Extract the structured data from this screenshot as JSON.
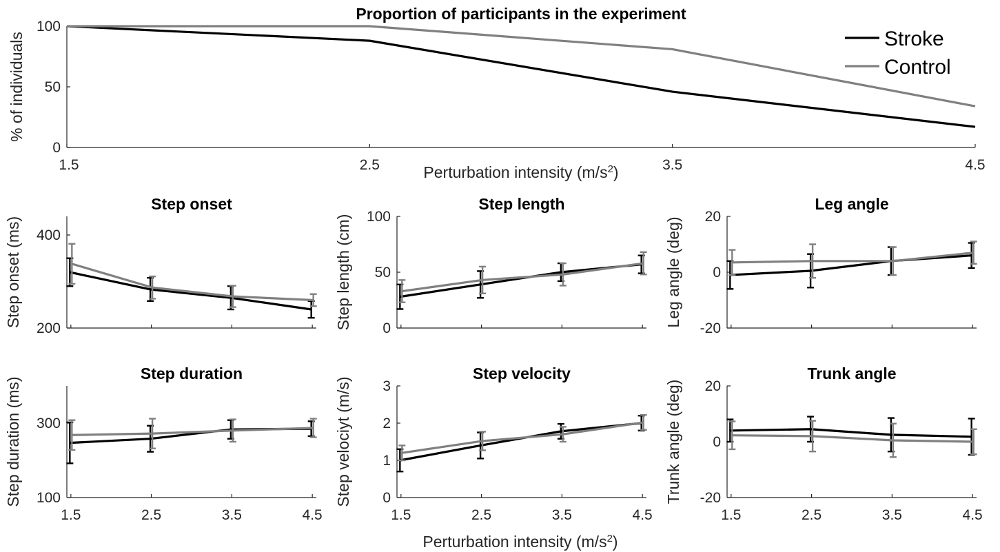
{
  "colors": {
    "stroke": "#000000",
    "control": "#808080",
    "axis": "#262626"
  },
  "legend": {
    "placement": "top-right",
    "entries": [
      "Stroke",
      "Control"
    ]
  },
  "xlabel_bottom": {
    "prefix": "Perturbation intensity (m/s",
    "sup": "2",
    "suffix": ")"
  },
  "chart_data": [
    {
      "id": "participants",
      "type": "line",
      "title": "Proportion of participants in the experiment",
      "xlabel": {
        "prefix": "Perturbation intensity (m/s",
        "sup": "2",
        "suffix": ")"
      },
      "ylabel": "% of individuals",
      "x": [
        1.5,
        2.5,
        3.5,
        4.5
      ],
      "xticks": [
        1.5,
        2.5,
        3.5,
        4.5
      ],
      "xticklabels": [
        "1.5",
        "2.5",
        "3.5",
        "4.5"
      ],
      "yticks": [
        0,
        50,
        100
      ],
      "yticklabels": [
        "0",
        "50",
        "100"
      ],
      "xlim": [
        1.5,
        4.5
      ],
      "ylim": [
        0,
        100
      ],
      "grid": false,
      "series": [
        {
          "name": "Stroke",
          "values": [
            100,
            88,
            46,
            17
          ]
        },
        {
          "name": "Control",
          "values": [
            100,
            100,
            81,
            34
          ]
        }
      ]
    },
    {
      "id": "step-onset",
      "type": "line",
      "title": "Step onset",
      "ylabel": "Step onset (ms)",
      "x": [
        1.5,
        2.5,
        3.5,
        4.5
      ],
      "xticks": [
        1.5,
        2.5,
        3.5,
        4.5
      ],
      "xticklabels": [],
      "yticks": [
        200,
        400
      ],
      "yticklabels": [
        "200",
        "400"
      ],
      "xlim": [
        1.45,
        4.55
      ],
      "ylim": [
        200,
        440
      ],
      "grid": false,
      "series": [
        {
          "name": "Stroke",
          "values": [
            320,
            283,
            265,
            240
          ],
          "errors": [
            30,
            25,
            25,
            18
          ]
        },
        {
          "name": "Control",
          "values": [
            338,
            287,
            268,
            260
          ],
          "errors": [
            43,
            24,
            23,
            13
          ]
        }
      ]
    },
    {
      "id": "step-length",
      "type": "line",
      "title": "Step length",
      "ylabel": "Step length (cm)",
      "x": [
        1.5,
        2.5,
        3.5,
        4.5
      ],
      "xticks": [
        1.5,
        2.5,
        3.5,
        4.5
      ],
      "xticklabels": [],
      "yticks": [
        0,
        50,
        100
      ],
      "yticklabels": [
        "0",
        "50",
        "100"
      ],
      "xlim": [
        1.45,
        4.55
      ],
      "ylim": [
        0,
        100
      ],
      "grid": false,
      "series": [
        {
          "name": "Stroke",
          "values": [
            28,
            39,
            50,
            57
          ],
          "errors": [
            11,
            12,
            8,
            8
          ]
        },
        {
          "name": "Control",
          "values": [
            33,
            43,
            48,
            58
          ],
          "errors": [
            10,
            12,
            10,
            10
          ]
        }
      ]
    },
    {
      "id": "leg-angle",
      "type": "line",
      "title": "Leg angle",
      "ylabel": "Leg angle (deg)",
      "x": [
        1.5,
        2.5,
        3.5,
        4.5
      ],
      "xticks": [
        1.5,
        2.5,
        3.5,
        4.5
      ],
      "xticklabels": [],
      "yticks": [
        -20,
        0,
        20
      ],
      "yticklabels": [
        "-20",
        "0",
        "20"
      ],
      "xlim": [
        1.45,
        4.55
      ],
      "ylim": [
        -20,
        20
      ],
      "grid": false,
      "series": [
        {
          "name": "Stroke",
          "values": [
            -1,
            0.5,
            4,
            6
          ],
          "errors": [
            5,
            6,
            5,
            4.5
          ]
        },
        {
          "name": "Control",
          "values": [
            3.5,
            4,
            4,
            7
          ],
          "errors": [
            4.5,
            6,
            5,
            4
          ]
        }
      ]
    },
    {
      "id": "step-duration",
      "type": "line",
      "title": "Step duration",
      "ylabel": "Step duration (ms)",
      "x": [
        1.5,
        2.5,
        3.5,
        4.5
      ],
      "xticks": [
        1.5,
        2.5,
        3.5,
        4.5
      ],
      "xticklabels": [
        "1.5",
        "2.5",
        "3.5",
        "4.5"
      ],
      "yticks": [
        100,
        300
      ],
      "yticklabels": [
        "100",
        "300"
      ],
      "xlim": [
        1.45,
        4.55
      ],
      "ylim": [
        100,
        400
      ],
      "grid": false,
      "series": [
        {
          "name": "Stroke",
          "values": [
            247,
            258,
            283,
            285
          ],
          "errors": [
            55,
            35,
            25,
            20
          ]
        },
        {
          "name": "Control",
          "values": [
            268,
            272,
            280,
            287
          ],
          "errors": [
            40,
            40,
            30,
            25
          ]
        }
      ]
    },
    {
      "id": "step-velocity",
      "type": "line",
      "title": "Step velocity",
      "ylabel": "Step velociyt (m/s)",
      "x": [
        1.5,
        2.5,
        3.5,
        4.5
      ],
      "xticks": [
        1.5,
        2.5,
        3.5,
        4.5
      ],
      "xticklabels": [
        "1.5",
        "2.5",
        "3.5",
        "4.5"
      ],
      "yticks": [
        0,
        1,
        2,
        3
      ],
      "yticklabels": [
        "0",
        "1",
        "2",
        "3"
      ],
      "xlim": [
        1.45,
        4.55
      ],
      "ylim": [
        0,
        3
      ],
      "grid": false,
      "series": [
        {
          "name": "Stroke",
          "values": [
            1.0,
            1.4,
            1.78,
            2.0
          ],
          "errors": [
            0.3,
            0.35,
            0.2,
            0.2
          ]
        },
        {
          "name": "Control",
          "values": [
            1.2,
            1.52,
            1.7,
            2.02
          ],
          "errors": [
            0.2,
            0.25,
            0.2,
            0.2
          ]
        }
      ]
    },
    {
      "id": "trunk-angle",
      "type": "line",
      "title": "Trunk angle",
      "ylabel": "Trunk angle (deg)",
      "x": [
        1.5,
        2.5,
        3.5,
        4.5
      ],
      "xticks": [
        1.5,
        2.5,
        3.5,
        4.5
      ],
      "xticklabels": [
        "1.5",
        "2.5",
        "3.5",
        "4.5"
      ],
      "yticks": [
        -20,
        0,
        20
      ],
      "yticklabels": [
        "-20",
        "0",
        "20"
      ],
      "xlim": [
        1.45,
        4.55
      ],
      "ylim": [
        -20,
        20
      ],
      "grid": false,
      "series": [
        {
          "name": "Stroke",
          "values": [
            4,
            4.5,
            2.5,
            1.8
          ],
          "errors": [
            4,
            4.5,
            6,
            6.5
          ]
        },
        {
          "name": "Control",
          "values": [
            2.3,
            2,
            0.5,
            0
          ],
          "errors": [
            5,
            5.5,
            6,
            4.5
          ]
        }
      ]
    }
  ]
}
